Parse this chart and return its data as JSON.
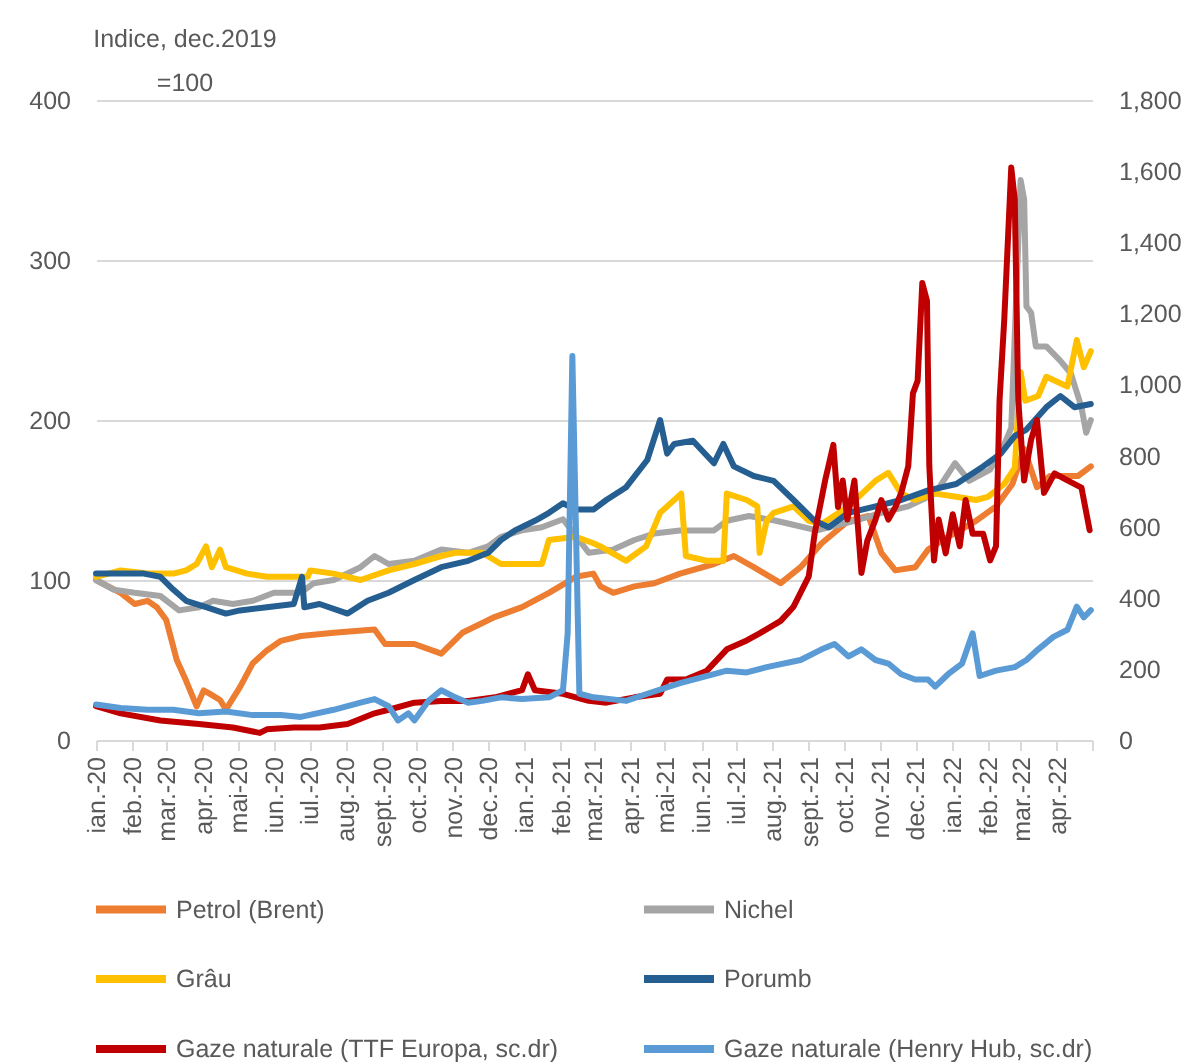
{
  "chart_data": {
    "type": "line",
    "ylabel": "Indice, dec.2019 =100",
    "legend": "bottom",
    "grid": "y",
    "xlim": [
      "2020-01-01",
      "2022-05-01"
    ],
    "xticks": [
      {
        "value": "2020-01",
        "label": "ian.-20"
      },
      {
        "value": "2020-02",
        "label": "feb.-20"
      },
      {
        "value": "2020-03",
        "label": "mar.-20"
      },
      {
        "value": "2020-04",
        "label": "apr.-20"
      },
      {
        "value": "2020-05",
        "label": "mai-20"
      },
      {
        "value": "2020-06",
        "label": "iun.-20"
      },
      {
        "value": "2020-07",
        "label": "iul.-20"
      },
      {
        "value": "2020-08",
        "label": "aug.-20"
      },
      {
        "value": "2020-09",
        "label": "sept.-20"
      },
      {
        "value": "2020-10",
        "label": "oct.-20"
      },
      {
        "value": "2020-11",
        "label": "nov.-20"
      },
      {
        "value": "2020-12",
        "label": "dec.-20"
      },
      {
        "value": "2021-01",
        "label": "ian.-21"
      },
      {
        "value": "2021-02",
        "label": "feb.-21"
      },
      {
        "value": "2021-03",
        "label": "mar.-21"
      },
      {
        "value": "2021-04",
        "label": "apr.-21"
      },
      {
        "value": "2021-05",
        "label": "mai-21"
      },
      {
        "value": "2021-06",
        "label": "iun.-21"
      },
      {
        "value": "2021-07",
        "label": "iul.-21"
      },
      {
        "value": "2021-08",
        "label": "aug.-21"
      },
      {
        "value": "2021-09",
        "label": "sept.-21"
      },
      {
        "value": "2021-10",
        "label": "oct.-21"
      },
      {
        "value": "2021-11",
        "label": "nov.-21"
      },
      {
        "value": "2021-12",
        "label": "dec.-21"
      },
      {
        "value": "2022-01",
        "label": "ian.-22"
      },
      {
        "value": "2022-02",
        "label": "feb.-22"
      },
      {
        "value": "2022-03",
        "label": "mar.-22"
      },
      {
        "value": "2022-04",
        "label": "apr.-22"
      },
      {
        "value": "2022-05",
        "label": null
      }
    ],
    "ylim": [
      0,
      400
    ],
    "yticks": [
      0,
      100,
      200,
      300,
      400
    ],
    "y2lim": [
      0,
      1800
    ],
    "y2ticks": [
      0,
      200,
      400,
      600,
      800,
      {
        "value": 1000,
        "label": "1,000"
      },
      {
        "value": 1200,
        "label": "1,200"
      },
      {
        "value": 1400,
        "label": "1,400"
      },
      {
        "value": 1600,
        "label": "1,600"
      },
      {
        "value": 1800,
        "label": "1,800"
      }
    ],
    "series": [
      {
        "name": "Petrol (Brent)",
        "color": "#ed7d31",
        "x": [
          "2020-01-01",
          "2020-01-22",
          "2020-02-03",
          "2020-02-14",
          "2020-02-22",
          "2020-03-01",
          "2020-03-10",
          "2020-03-18",
          "2020-03-27",
          "2020-04-02",
          "2020-04-07",
          "2020-04-16",
          "2020-04-21",
          "2020-05-03",
          "2020-05-14",
          "2020-05-26",
          "2020-06-07",
          "2020-06-24",
          "2020-07-22",
          "2020-08-26",
          "2020-09-04",
          "2020-09-29",
          "2020-10-22",
          "2020-11-09",
          "2020-12-07",
          "2020-12-30",
          "2021-01-22",
          "2021-02-14",
          "2021-03-01",
          "2021-03-07",
          "2021-03-18",
          "2021-04-05",
          "2021-04-22",
          "2021-05-14",
          "2021-06-12",
          "2021-06-29",
          "2021-07-16",
          "2021-08-08",
          "2021-08-25",
          "2021-09-12",
          "2021-10-05",
          "2021-10-22",
          "2021-11-02",
          "2021-11-14",
          "2021-12-01",
          "2021-12-12",
          "2021-12-29",
          "2022-01-22",
          "2022-02-08",
          "2022-02-22",
          "2022-03-04",
          "2022-03-15",
          "2022-03-26",
          "2022-04-19",
          "2022-04-30"
        ],
        "values": [
          100,
          92,
          85,
          87,
          83,
          75,
          50,
          37,
          21,
          31,
          29,
          25,
          19,
          33,
          48,
          56,
          62,
          65,
          67,
          69,
          60,
          60,
          54,
          67,
          77,
          83,
          92,
          102,
          104,
          96,
          92,
          96,
          98,
          104,
          110,
          115,
          108,
          98,
          108,
          123,
          137,
          140,
          117,
          106,
          108,
          119,
          127,
          137,
          146,
          160,
          182,
          158,
          165,
          165,
          171
        ]
      },
      {
        "name": "Nichel",
        "color": "#a5a5a5",
        "x": [
          "2020-01-01",
          "2020-01-16",
          "2020-02-03",
          "2020-02-25",
          "2020-03-12",
          "2020-03-29",
          "2020-04-10",
          "2020-04-27",
          "2020-05-14",
          "2020-06-01",
          "2020-06-24",
          "2020-07-05",
          "2020-07-22",
          "2020-08-14",
          "2020-08-26",
          "2020-09-07",
          "2020-09-29",
          "2020-10-22",
          "2020-11-14",
          "2020-12-01",
          "2020-12-12",
          "2020-12-30",
          "2021-01-16",
          "2021-02-03",
          "2021-02-25",
          "2021-03-18",
          "2021-04-05",
          "2021-04-22",
          "2021-05-14",
          "2021-06-12",
          "2021-06-23",
          "2021-07-12",
          "2021-08-04",
          "2021-08-16",
          "2021-09-08",
          "2021-10-10",
          "2021-11-02",
          "2021-11-25",
          "2021-12-18",
          "2022-01-04",
          "2022-01-16",
          "2022-02-03",
          "2022-02-14",
          "2022-02-21",
          "2022-03-01",
          "2022-03-04",
          "2022-03-06",
          "2022-03-10",
          "2022-03-14",
          "2022-03-23",
          "2022-04-04",
          "2022-04-13",
          "2022-04-22",
          "2022-04-26",
          "2022-04-30"
        ],
        "values": [
          100,
          94,
          92,
          90,
          81,
          83,
          87,
          85,
          87,
          92,
          92,
          98,
          100,
          108,
          115,
          110,
          112,
          119,
          117,
          121,
          127,
          131,
          133,
          138,
          117,
          119,
          125,
          129,
          131,
          131,
          137,
          140,
          137,
          135,
          131,
          137,
          142,
          146,
          154,
          173,
          162,
          169,
          183,
          195,
          350,
          338,
          271,
          267,
          246,
          246,
          237,
          229,
          208,
          192,
          200
        ]
      },
      {
        "name": "Grâu",
        "color": "#ffc000",
        "x": [
          "2020-01-01",
          "2020-01-22",
          "2020-02-14",
          "2020-03-07",
          "2020-03-18",
          "2020-03-27",
          "2020-04-04",
          "2020-04-09",
          "2020-04-16",
          "2020-04-21",
          "2020-05-09",
          "2020-05-26",
          "2020-06-30",
          "2020-07-02",
          "2020-07-22",
          "2020-08-14",
          "2020-09-07",
          "2020-09-29",
          "2020-10-22",
          "2020-11-03",
          "2020-11-26",
          "2020-12-12",
          "2021-01-16",
          "2021-01-22",
          "2021-02-14",
          "2021-03-01",
          "2021-03-07",
          "2021-03-29",
          "2021-04-15",
          "2021-04-27",
          "2021-05-15",
          "2021-05-19",
          "2021-06-06",
          "2021-06-20",
          "2021-06-23",
          "2021-07-10",
          "2021-07-19",
          "2021-07-21",
          "2021-07-27",
          "2021-08-02",
          "2021-08-19",
          "2021-09-01",
          "2021-09-12",
          "2021-10-05",
          "2021-10-28",
          "2021-11-08",
          "2021-11-19",
          "2021-12-01",
          "2021-12-18",
          "2022-01-05",
          "2022-01-22",
          "2022-02-01",
          "2022-02-15",
          "2022-02-24",
          "2022-03-01",
          "2022-03-05",
          "2022-03-16",
          "2022-03-23",
          "2022-04-10",
          "2022-04-18",
          "2022-04-24",
          "2022-04-30"
        ],
        "values": [
          102,
          106,
          104,
          104,
          106,
          110,
          121,
          108,
          119,
          108,
          104,
          102,
          102,
          106,
          104,
          100,
          106,
          110,
          115,
          117,
          117,
          110,
          110,
          125,
          127,
          123,
          121,
          112,
          121,
          142,
          154,
          115,
          112,
          112,
          154,
          150,
          146,
          117,
          137,
          142,
          146,
          137,
          135,
          146,
          162,
          167,
          154,
          150,
          154,
          152,
          150,
          152,
          160,
          170,
          230,
          212,
          215,
          227,
          221,
          250,
          233,
          243
        ]
      },
      {
        "name": "Porumb",
        "color": "#255e91",
        "x": [
          "2020-01-01",
          "2020-01-22",
          "2020-02-11",
          "2020-02-25",
          "2020-03-07",
          "2020-03-18",
          "2020-04-04",
          "2020-04-21",
          "2020-05-03",
          "2020-05-26",
          "2020-06-18",
          "2020-06-25",
          "2020-06-27",
          "2020-07-10",
          "2020-08-03",
          "2020-08-20",
          "2020-09-07",
          "2020-09-29",
          "2020-10-22",
          "2020-11-14",
          "2020-12-01",
          "2020-12-12",
          "2020-12-24",
          "2021-01-10",
          "2021-01-22",
          "2021-02-03",
          "2021-02-14",
          "2021-03-01",
          "2021-03-12",
          "2021-03-29",
          "2021-04-16",
          "2021-04-27",
          "2021-05-03",
          "2021-05-09",
          "2021-05-25",
          "2021-06-12",
          "2021-06-20",
          "2021-06-29",
          "2021-07-16",
          "2021-08-02",
          "2021-08-19",
          "2021-09-06",
          "2021-09-18",
          "2021-10-05",
          "2021-10-28",
          "2021-11-19",
          "2021-12-12",
          "2022-01-05",
          "2022-01-28",
          "2022-02-12",
          "2022-02-24",
          "2022-03-06",
          "2022-03-23",
          "2022-04-04",
          "2022-04-16",
          "2022-04-30"
        ],
        "values": [
          104,
          104,
          104,
          102,
          94,
          87,
          83,
          79,
          81,
          83,
          85,
          102,
          83,
          85,
          79,
          87,
          92,
          100,
          108,
          112,
          117,
          125,
          131,
          137,
          142,
          148,
          144,
          144,
          150,
          158,
          175,
          200,
          179,
          185,
          187,
          173,
          185,
          171,
          165,
          162,
          150,
          137,
          133,
          142,
          146,
          150,
          156,
          160,
          171,
          179,
          190,
          194,
          208,
          215,
          208,
          210
        ]
      },
      {
        "name": "Gaze naturale (TTF Europa, sc.dr)",
        "color": "#c00000",
        "axis": "y2",
        "x": [
          "2020-01-01",
          "2020-01-22",
          "2020-02-25",
          "2020-03-29",
          "2020-04-27",
          "2020-05-20",
          "2020-05-26",
          "2020-06-18",
          "2020-07-10",
          "2020-08-03",
          "2020-08-26",
          "2020-09-07",
          "2020-09-29",
          "2020-10-22",
          "2020-11-14",
          "2020-12-07",
          "2020-12-30",
          "2021-01-04",
          "2021-01-10",
          "2021-02-03",
          "2021-02-25",
          "2021-03-12",
          "2021-04-05",
          "2021-04-27",
          "2021-05-03",
          "2021-05-19",
          "2021-06-06",
          "2021-06-23",
          "2021-07-10",
          "2021-07-21",
          "2021-08-08",
          "2021-08-19",
          "2021-09-01",
          "2021-09-06",
          "2021-09-15",
          "2021-09-22",
          "2021-09-26",
          "2021-09-30",
          "2021-10-04",
          "2021-10-10",
          "2021-10-16",
          "2021-10-21",
          "2021-10-28",
          "2021-11-02",
          "2021-11-08",
          "2021-11-14",
          "2021-11-19",
          "2021-11-25",
          "2021-11-29",
          "2021-12-03",
          "2021-12-07",
          "2021-12-11",
          "2021-12-13",
          "2021-12-17",
          "2021-12-21",
          "2021-12-27",
          "2022-01-02",
          "2022-01-08",
          "2022-01-13",
          "2022-01-19",
          "2022-01-28",
          "2022-02-03",
          "2022-02-08",
          "2022-02-11",
          "2022-02-15",
          "2022-02-21",
          "2022-02-24",
          "2022-02-27",
          "2022-03-04",
          "2022-03-10",
          "2022-03-15",
          "2022-03-21",
          "2022-03-30",
          "2022-04-10",
          "2022-04-22",
          "2022-04-29"
        ],
        "values": [
          95,
          75,
          55,
          45,
          35,
          20,
          30,
          35,
          35,
          45,
          75,
          85,
          105,
          110,
          110,
          120,
          140,
          185,
          140,
          130,
          110,
          105,
          120,
          130,
          170,
          170,
          195,
          255,
          280,
          300,
          335,
          375,
          460,
          580,
          730,
          830,
          655,
          730,
          620,
          730,
          470,
          560,
          620,
          675,
          620,
          655,
          695,
          770,
          975,
          1010,
          1285,
          1235,
          770,
          505,
          620,
          525,
          635,
          545,
          675,
          580,
          580,
          505,
          545,
          955,
          1180,
          1610,
          1520,
          955,
          730,
          845,
          900,
          695,
          750,
          730,
          710,
          590
        ]
      },
      {
        "name": "Gaze naturale (Henry Hub, sc.dr)",
        "color": "#5b9bd5",
        "axis": "y2",
        "x": [
          "2020-01-01",
          "2020-01-22",
          "2020-02-14",
          "2020-03-07",
          "2020-03-29",
          "2020-04-21",
          "2020-05-14",
          "2020-06-07",
          "2020-06-24",
          "2020-07-22",
          "2020-08-14",
          "2020-08-26",
          "2020-09-07",
          "2020-09-15",
          "2020-09-24",
          "2020-09-29",
          "2020-10-11",
          "2020-10-22",
          "2020-11-03",
          "2020-11-14",
          "2020-11-26",
          "2020-12-12",
          "2020-12-30",
          "2021-01-22",
          "2021-02-03",
          "2021-02-07",
          "2021-02-11",
          "2021-02-17",
          "2021-03-01",
          "2021-03-29",
          "2021-04-16",
          "2021-05-14",
          "2021-06-12",
          "2021-06-23",
          "2021-07-10",
          "2021-07-27",
          "2021-08-25",
          "2021-09-12",
          "2021-09-23",
          "2021-10-05",
          "2021-10-16",
          "2021-10-28",
          "2021-11-08",
          "2021-11-19",
          "2021-12-01",
          "2021-12-12",
          "2021-12-18",
          "2021-12-29",
          "2022-01-10",
          "2022-01-19",
          "2022-01-25",
          "2022-02-08",
          "2022-02-24",
          "2022-03-06",
          "2022-03-16",
          "2022-03-29",
          "2022-04-10",
          "2022-04-18",
          "2022-04-24",
          "2022-04-30"
        ],
        "values": [
          100,
          90,
          85,
          85,
          75,
          80,
          70,
          70,
          65,
          85,
          105,
          115,
          95,
          55,
          75,
          55,
          110,
          140,
          120,
          105,
          110,
          120,
          115,
          120,
          140,
          300,
          1080,
          130,
          120,
          110,
          130,
          160,
          185,
          195,
          190,
          205,
          225,
          255,
          270,
          235,
          255,
          225,
          215,
          185,
          170,
          170,
          150,
          185,
          215,
          300,
          180,
          195,
          205,
          225,
          255,
          290,
          310,
          375,
          345,
          365
        ]
      }
    ]
  }
}
